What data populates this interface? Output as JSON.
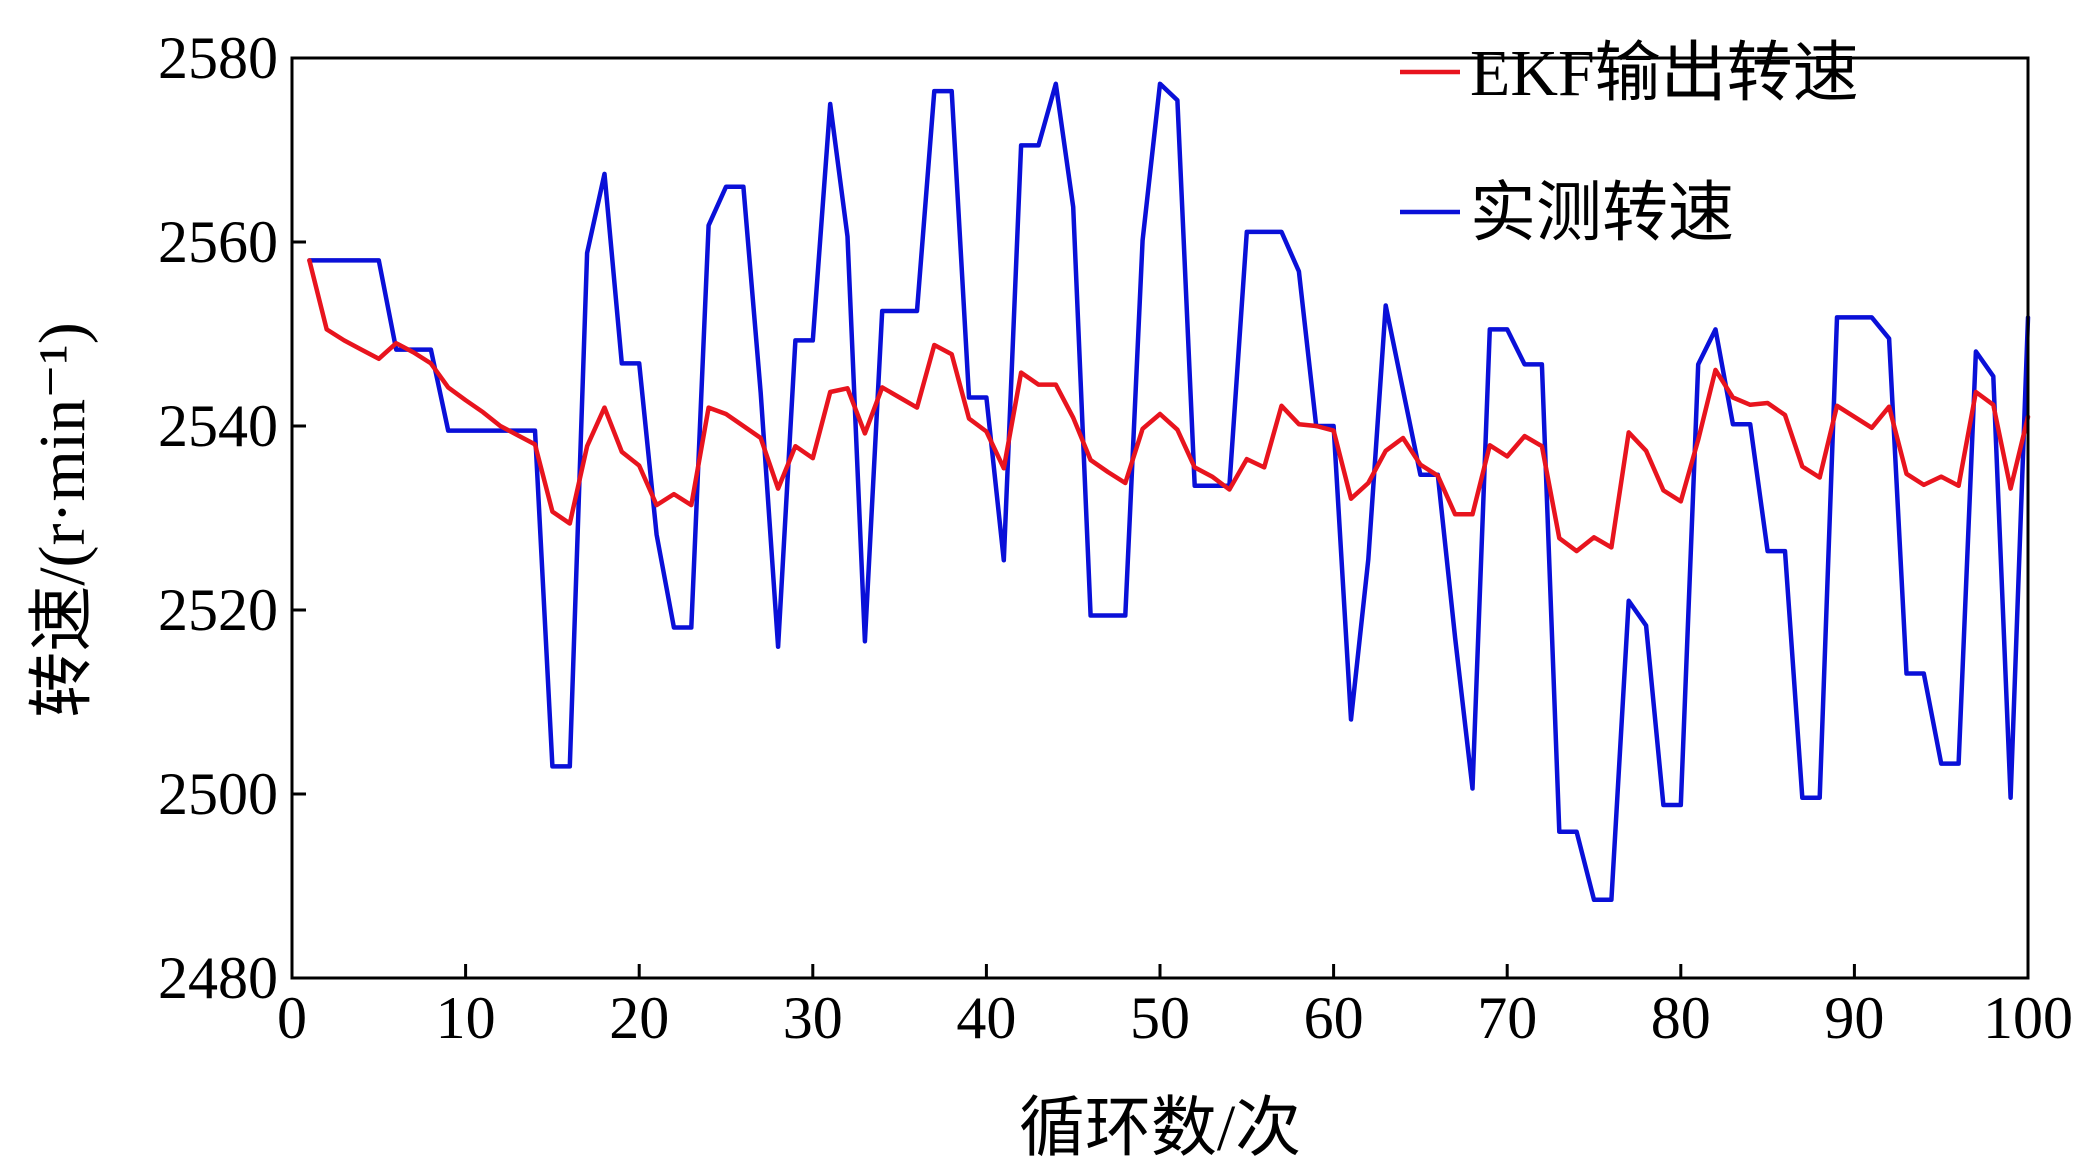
{
  "chart_data": {
    "type": "line",
    "title": "",
    "xlabel": "循环数/次",
    "ylabel": "转速/(r·min⁻¹)",
    "xlim": [
      0,
      100
    ],
    "ylim": [
      2480,
      2580
    ],
    "xticks": [
      0,
      10,
      20,
      30,
      40,
      50,
      60,
      70,
      80,
      90,
      100
    ],
    "yticks": [
      2480,
      2500,
      2520,
      2540,
      2560,
      2580
    ],
    "grid": false,
    "legend_position": "top-right",
    "x": [
      1,
      2,
      3,
      4,
      5,
      6,
      7,
      8,
      9,
      10,
      11,
      12,
      13,
      14,
      15,
      16,
      17,
      18,
      19,
      20,
      21,
      22,
      23,
      24,
      25,
      26,
      27,
      28,
      29,
      30,
      31,
      32,
      33,
      34,
      35,
      36,
      37,
      38,
      39,
      40,
      41,
      42,
      43,
      44,
      45,
      46,
      47,
      48,
      49,
      50,
      51,
      52,
      53,
      54,
      55,
      56,
      57,
      58,
      59,
      60,
      61,
      62,
      63,
      64,
      65,
      66,
      67,
      68,
      69,
      70,
      71,
      72,
      73,
      74,
      75,
      76,
      77,
      78,
      79,
      80,
      81,
      82,
      83,
      84,
      85,
      86,
      87,
      88,
      89,
      90,
      91,
      92,
      93,
      94,
      95,
      96,
      97,
      98,
      99,
      100
    ],
    "series": [
      {
        "name": "EKF输出转速",
        "color": "#e8141e",
        "values": [
          2558,
          2550.5,
          2549.3,
          2548.3,
          2547.3,
          2549,
          2548,
          2546.8,
          2544.2,
          2542.8,
          2541.5,
          2540,
          2539,
          2538,
          2530.7,
          2529.4,
          2537.8,
          2542,
          2537.2,
          2535.7,
          2531.4,
          2532.6,
          2531.4,
          2542,
          2541.3,
          2540,
          2538.7,
          2533.2,
          2537.8,
          2536.5,
          2543.7,
          2544.1,
          2539.2,
          2544.2,
          2543.1,
          2542,
          2548.8,
          2547.8,
          2540.8,
          2539.4,
          2535.4,
          2545.8,
          2544.5,
          2544.5,
          2540.9,
          2536.3,
          2535,
          2533.8,
          2539.7,
          2541.3,
          2539.6,
          2535.5,
          2534.5,
          2533.1,
          2536.4,
          2535.5,
          2542.2,
          2540.2,
          2540,
          2539.5,
          2532.1,
          2533.8,
          2537.3,
          2538.7,
          2535.8,
          2534.6,
          2530.4,
          2530.4,
          2537.9,
          2536.7,
          2538.9,
          2537.8,
          2527.8,
          2526.4,
          2527.9,
          2526.8,
          2539.3,
          2537.3,
          2533,
          2531.8,
          2538.5,
          2546.1,
          2543.1,
          2542.3,
          2542.5,
          2541.2,
          2535.6,
          2534.4,
          2542.2,
          2541,
          2539.8,
          2542.1,
          2534.8,
          2533.6,
          2534.5,
          2533.5,
          2543.7,
          2542.3,
          2533.2,
          2541
        ]
      },
      {
        "name": "实测转速",
        "color": "#0a10d8",
        "values": [
          2558,
          2558,
          2558,
          2558,
          2558,
          2548.3,
          2548.3,
          2548.3,
          2539.5,
          2539.5,
          2539.5,
          2539.5,
          2539.5,
          2539.5,
          2503,
          2503,
          2558.8,
          2567.4,
          2546.8,
          2546.8,
          2528.2,
          2518.1,
          2518.1,
          2561.8,
          2566,
          2566,
          2543.6,
          2516,
          2549.3,
          2549.3,
          2575,
          2560.6,
          2516.6,
          2552.5,
          2552.5,
          2552.5,
          2576.4,
          2576.4,
          2543.1,
          2543.1,
          2525.4,
          2570.5,
          2570.5,
          2577.2,
          2563.8,
          2519.4,
          2519.4,
          2519.4,
          2560.2,
          2577.2,
          2575.4,
          2533.5,
          2533.5,
          2533.5,
          2561.1,
          2561.1,
          2561.1,
          2556.8,
          2540,
          2540,
          2508.1,
          2525.5,
          2553.1,
          2543.9,
          2534.7,
          2534.7,
          2517,
          2500.6,
          2550.5,
          2550.5,
          2546.7,
          2546.7,
          2495.9,
          2495.9,
          2488.5,
          2488.5,
          2521,
          2518.3,
          2498.8,
          2498.8,
          2546.7,
          2550.5,
          2540.2,
          2540.2,
          2526.4,
          2526.4,
          2499.6,
          2499.6,
          2551.8,
          2551.8,
          2551.8,
          2549.5,
          2513.1,
          2513.1,
          2503.3,
          2503.3,
          2548.1,
          2545.4,
          2499.6,
          2551.8
        ]
      }
    ]
  }
}
